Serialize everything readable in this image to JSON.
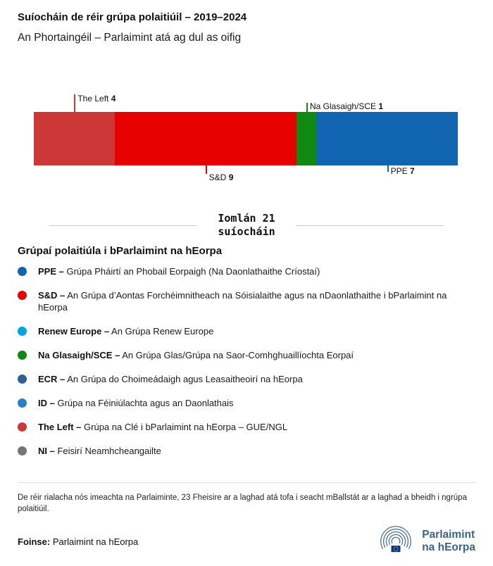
{
  "header": {
    "title": "Suíocháin de réir grúpa polaitiúil – 2019–2024",
    "subtitle": "An Phortaingéil – Parlaimint atá ag dul as oifig"
  },
  "chart_data": {
    "type": "bar",
    "orientation": "horizontal-stacked",
    "title": "Suíocháin de réir grúpa polaitiúil – 2019–2024",
    "total": 21,
    "total_line1": "Iomlán 21",
    "total_line2": "suíocháin",
    "categories": [
      "The Left",
      "S&D",
      "Na Glasaigh/SCE",
      "PPE"
    ],
    "values": [
      4,
      9,
      1,
      7
    ],
    "segments": [
      {
        "name": "The Left",
        "value": 4,
        "color": "#cc3838",
        "label_position": "above",
        "tick": "tall"
      },
      {
        "name": "S&D",
        "value": 9,
        "color": "#e60000",
        "label_position": "below",
        "tick": "tall"
      },
      {
        "name": "Na Glasaigh/SCE",
        "value": 1,
        "color": "#0f8911",
        "label_position": "above",
        "tick": "short"
      },
      {
        "name": "PPE",
        "value": 7,
        "color": "#1164af",
        "label_position": "below",
        "tick": "short"
      }
    ]
  },
  "legend": {
    "heading": "Grúpaí polaitiúla i bParlaimint na hEorpa",
    "items": [
      {
        "label": "PPE –",
        "description": "Grúpa Pháirtí an Phobail Eorpaigh (Na Daonlathaithe Críostaí)",
        "color": "#1164af"
      },
      {
        "label": "S&D –",
        "description": "An Grúpa d’Aontas Forchéimnitheach na Sóisialaithe agus na nDaonlathaithe i bParlaimint na hEorpa",
        "color": "#e60000"
      },
      {
        "label": "Renew Europe –",
        "description": "An Grúpa Renew Europe",
        "color": "#00a3e0"
      },
      {
        "label": "Na Glasaigh/SCE –",
        "description": "An Grúpa Glas/Grúpa na Saor-Comhghuaillíochta Eorpaí",
        "color": "#0f8911"
      },
      {
        "label": "ECR –",
        "description": "An Grúpa do Choimeádaigh agus Leasaitheoirí na hEorpa",
        "color": "#2b6397"
      },
      {
        "label": "ID –",
        "description": "Grúpa na Féiniúlachta agus an Daonlathais",
        "color": "#2e7ec4"
      },
      {
        "label": "The Left –",
        "description": "Grúpa na Clé i bParlaimint na hEorpa – GUE/NGL",
        "color": "#cc3838"
      },
      {
        "label": "NI –",
        "description": "Feisirí Neamhcheangailte",
        "color": "#757575"
      }
    ]
  },
  "footnote": "De réir rialacha nós imeachta na Parlaiminte, 23 Fheisire ar a laghad atá tofa i seacht mBallstát ar a laghad a bheidh i ngrúpa polaitiúil.",
  "source": {
    "label": "Foinse:",
    "text": "Parlaimint na hEorpa"
  },
  "logo": {
    "line1": "Parlaimint",
    "line2": "na hEorpa"
  }
}
